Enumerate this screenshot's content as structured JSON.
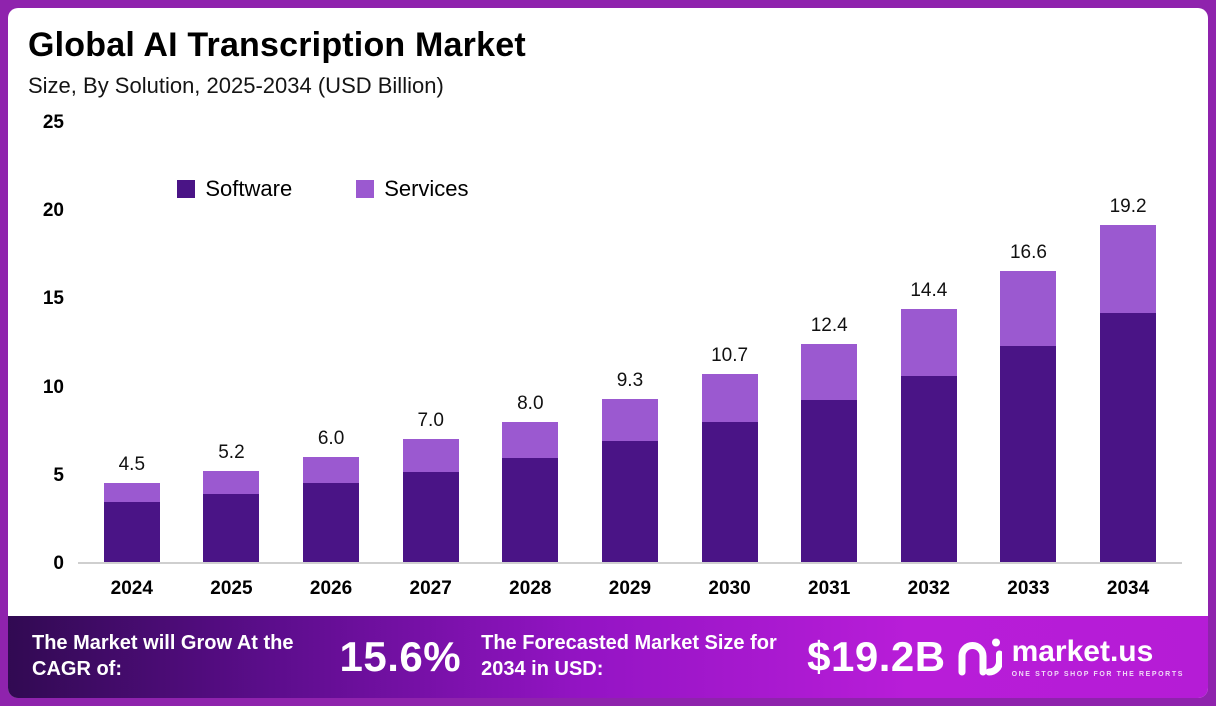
{
  "header": {
    "title": "Global AI Transcription Market",
    "subtitle": "Size, By Solution, 2025-2034 (USD Billion)"
  },
  "chart_data": {
    "type": "bar",
    "stacked": true,
    "title": "Global AI Transcription Market Size, By Solution, 2025-2034 (USD Billion)",
    "categories": [
      "2024",
      "2025",
      "2026",
      "2027",
      "2028",
      "2029",
      "2030",
      "2031",
      "2032",
      "2033",
      "2034"
    ],
    "series": [
      {
        "name": "Software",
        "color": "#4a1486",
        "values": [
          3.4,
          3.9,
          4.5,
          5.1,
          5.9,
          6.9,
          8.0,
          9.2,
          10.6,
          12.3,
          14.2
        ]
      },
      {
        "name": "Services",
        "color": "#9b59d0",
        "values": [
          1.1,
          1.3,
          1.5,
          1.9,
          2.1,
          2.4,
          2.7,
          3.2,
          3.8,
          4.3,
          5.0
        ]
      }
    ],
    "totals": [
      4.5,
      5.2,
      6.0,
      7.0,
      8.0,
      9.3,
      10.7,
      12.4,
      14.4,
      16.6,
      19.2
    ],
    "total_labels": [
      "4.5",
      "5.2",
      "6.0",
      "7.0",
      "8.0",
      "9.3",
      "10.7",
      "12.4",
      "14.4",
      "16.6",
      "19.2"
    ],
    "xlabel": "",
    "ylabel": "",
    "ylim": [
      0,
      25
    ],
    "yticks": [
      0,
      5,
      10,
      15,
      20,
      25
    ],
    "grid": false,
    "legend_position": "top-left-inset"
  },
  "footer": {
    "cagr_label": "The Market will Grow At the CAGR of:",
    "cagr_value": "15.6%",
    "forecast_label": "The Forecasted Market Size for 2034 in USD:",
    "forecast_value": "$19.2B",
    "logo_text": "market.us",
    "logo_tagline": "ONE STOP SHOP FOR THE REPORTS"
  },
  "colors": {
    "frame": "#8f23ad",
    "software": "#4a1486",
    "services": "#9b59d0",
    "footer_gradient_start": "#310a52",
    "footer_gradient_end": "#b51cd6"
  }
}
